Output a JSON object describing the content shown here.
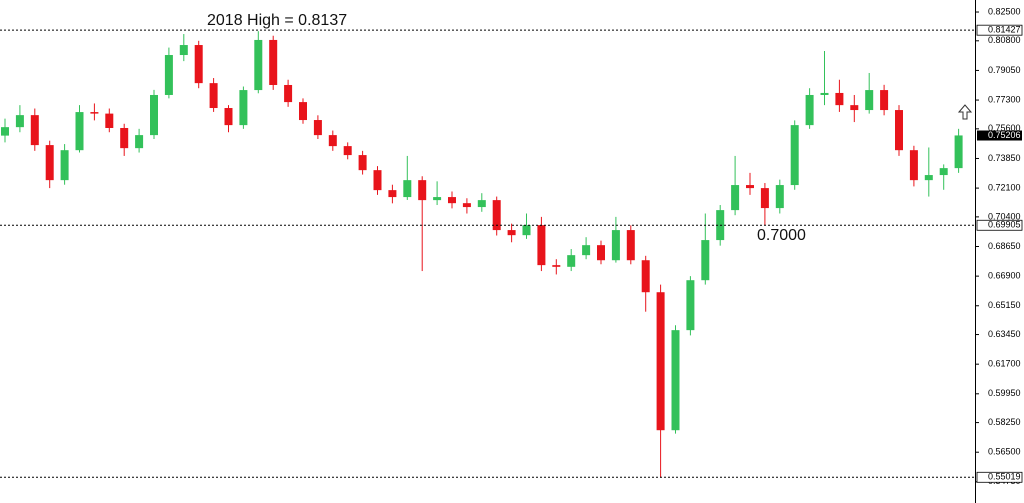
{
  "chart_data": {
    "type": "candlestick",
    "ylim": [
      0.5415,
      0.8321
    ],
    "yticks": [
      {
        "value": 0.825,
        "label": "0.82500"
      },
      {
        "value": 0.808,
        "label": "0.80800"
      },
      {
        "value": 0.7905,
        "label": "0.79050"
      },
      {
        "value": 0.773,
        "label": "0.77300"
      },
      {
        "value": 0.756,
        "label": "0.75600"
      },
      {
        "value": 0.7385,
        "label": "0.73850"
      },
      {
        "value": 0.721,
        "label": "0.72100"
      },
      {
        "value": 0.704,
        "label": "0.70400"
      },
      {
        "value": 0.6865,
        "label": "0.68650"
      },
      {
        "value": 0.669,
        "label": "0.66900"
      },
      {
        "value": 0.6515,
        "label": "0.65150"
      },
      {
        "value": 0.6345,
        "label": "0.63450"
      },
      {
        "value": 0.617,
        "label": "0.61700"
      },
      {
        "value": 0.5995,
        "label": "0.59950"
      },
      {
        "value": 0.5825,
        "label": "0.58250"
      },
      {
        "value": 0.565,
        "label": "0.56500"
      },
      {
        "value": 0.5475,
        "label": "0.54750"
      }
    ],
    "grid": false,
    "up_color": "#33c15a",
    "down_color": "#e8141b",
    "levels": [
      0.81427,
      0.69905,
      0.55019
    ],
    "last_price": 0.75206,
    "annotations": [
      "2018 High = 0.8137",
      "0.7000"
    ],
    "open": [
      0.752,
      0.757,
      0.7641,
      0.7464,
      0.7257,
      0.7434,
      0.7659,
      0.765,
      0.7565,
      0.7446,
      0.7523,
      0.776,
      0.7996,
      0.8055,
      0.783,
      0.7683,
      0.7582,
      0.7789,
      0.8085,
      0.7819,
      0.7718,
      0.7612,
      0.7523,
      0.7458,
      0.7405,
      0.7316,
      0.7198,
      0.7157,
      0.7257,
      0.7139,
      0.7157,
      0.7121,
      0.7098,
      0.7139,
      0.6962,
      0.6932,
      0.6991,
      0.6755,
      0.6745,
      0.6814,
      0.6873,
      0.6784,
      0.6962,
      0.6784,
      0.6595,
      0.578,
      0.6371,
      0.6666,
      0.6903,
      0.708,
      0.7228,
      0.721,
      0.7092,
      0.7228,
      0.7582,
      0.776,
      0.7772,
      0.77,
      0.7671,
      0.7789,
      0.7671,
      0.7434,
      0.7257,
      0.7287,
      0.7328
    ],
    "high": [
      0.762,
      0.77,
      0.768,
      0.749,
      0.747,
      0.77,
      0.771,
      0.768,
      0.759,
      0.756,
      0.779,
      0.804,
      0.812,
      0.808,
      0.786,
      0.77,
      0.781,
      0.8137,
      0.811,
      0.785,
      0.774,
      0.764,
      0.755,
      0.748,
      0.743,
      0.734,
      0.723,
      0.74,
      0.728,
      0.725,
      0.719,
      0.715,
      0.718,
      0.716,
      0.7,
      0.706,
      0.704,
      0.679,
      0.685,
      0.692,
      0.69,
      0.704,
      0.699,
      0.681,
      0.664,
      0.64,
      0.669,
      0.706,
      0.711,
      0.74,
      0.73,
      0.724,
      0.726,
      0.761,
      0.78,
      0.802,
      0.785,
      0.776,
      0.789,
      0.782,
      0.77,
      0.746,
      0.745,
      0.735,
      0.756
    ],
    "low": [
      0.748,
      0.754,
      0.743,
      0.721,
      0.723,
      0.742,
      0.761,
      0.754,
      0.74,
      0.742,
      0.75,
      0.774,
      0.796,
      0.78,
      0.766,
      0.754,
      0.756,
      0.777,
      0.779,
      0.769,
      0.759,
      0.75,
      0.743,
      0.738,
      0.729,
      0.717,
      0.712,
      0.714,
      0.672,
      0.711,
      0.709,
      0.706,
      0.707,
      0.693,
      0.689,
      0.691,
      0.672,
      0.67,
      0.672,
      0.679,
      0.676,
      0.677,
      0.676,
      0.648,
      0.55,
      0.576,
      0.634,
      0.664,
      0.687,
      0.705,
      0.717,
      0.699,
      0.706,
      0.72,
      0.756,
      0.77,
      0.766,
      0.76,
      0.765,
      0.764,
      0.74,
      0.722,
      0.716,
      0.72,
      0.73
    ],
    "close": [
      0.757,
      0.7641,
      0.7464,
      0.7257,
      0.7434,
      0.7659,
      0.765,
      0.7565,
      0.7446,
      0.7523,
      0.776,
      0.7996,
      0.8055,
      0.783,
      0.7683,
      0.7582,
      0.7789,
      0.8085,
      0.7819,
      0.7718,
      0.7612,
      0.7523,
      0.7458,
      0.7405,
      0.7316,
      0.7198,
      0.7157,
      0.7257,
      0.7139,
      0.7157,
      0.7121,
      0.7098,
      0.7139,
      0.6962,
      0.6932,
      0.6991,
      0.6755,
      0.6745,
      0.6814,
      0.6873,
      0.6784,
      0.6962,
      0.6784,
      0.6595,
      0.578,
      0.6371,
      0.6666,
      0.6903,
      0.708,
      0.7228,
      0.721,
      0.7092,
      0.7228,
      0.7582,
      0.776,
      0.7772,
      0.77,
      0.7671,
      0.7789,
      0.7671,
      0.7434,
      0.7257,
      0.7287,
      0.7328,
      0.7521
    ]
  }
}
